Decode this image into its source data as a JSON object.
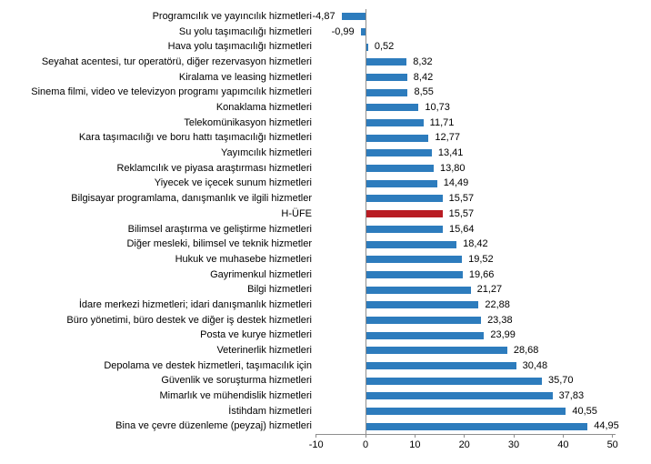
{
  "chart_data": {
    "type": "bar",
    "orientation": "horizontal",
    "title": "",
    "xlabel": "",
    "ylabel": "",
    "grid": false,
    "legend": false,
    "categories": [
      "Programcılık ve yayıncılık hizmetleri",
      "Su yolu taşımacılığı hizmetleri",
      "Hava yolu taşımacılığı hizmetleri",
      "Seyahat acentesi, tur operatörü, diğer rezervasyon hizmetleri",
      "Kiralama ve leasing hizmetleri",
      "Sinema filmi, video ve televizyon programı yapımcılık hizmetleri",
      "Konaklama hizmetleri",
      "Telekomünikasyon hizmetleri",
      "Kara taşımacılığı ve boru hattı taşımacılığı hizmetleri",
      "Yayımcılık hizmetleri",
      "Reklamcılık ve piyasa araştırması hizmetleri",
      "Yiyecek ve içecek sunum hizmetleri",
      "Bilgisayar programlama, danışmanlık ve ilgili hizmetler",
      "H-ÜFE",
      "Bilimsel araştırma ve geliştirme hizmetleri",
      "Diğer mesleki, bilimsel ve teknik hizmetler",
      "Hukuk ve muhasebe hizmetleri",
      "Gayrimenkul hizmetleri",
      "Bilgi hizmetleri",
      "İdare merkezi hizmetleri; idari danışmanlık hizmetleri",
      "Büro yönetimi, büro destek ve diğer iş destek hizmetleri",
      "Posta ve kurye hizmetleri",
      "Veterinerlik hizmetleri",
      "Depolama ve destek hizmetleri, taşımacılık için",
      "Güvenlik ve soruşturma hizmetleri",
      "Mimarlık ve mühendislik hizmetleri",
      "İstihdam hizmetleri",
      "Bina ve çevre düzenleme (peyzaj) hizmetleri"
    ],
    "values": [
      -4.87,
      -0.99,
      0.52,
      8.32,
      8.42,
      8.55,
      10.73,
      11.71,
      12.77,
      13.41,
      13.8,
      14.49,
      15.57,
      15.57,
      15.64,
      18.42,
      19.52,
      19.66,
      21.27,
      22.88,
      23.38,
      23.99,
      28.68,
      30.48,
      35.7,
      37.83,
      40.55,
      44.95
    ],
    "value_labels": [
      "-4,87",
      "-0,99",
      "0,52",
      "8,32",
      "8,42",
      "8,55",
      "10,73",
      "11,71",
      "12,77",
      "13,41",
      "13,80",
      "14,49",
      "15,57",
      "15,57",
      "15,64",
      "18,42",
      "19,52",
      "19,66",
      "21,27",
      "22,88",
      "23,38",
      "23,99",
      "28,68",
      "30,48",
      "35,70",
      "37,83",
      "40,55",
      "44,95"
    ],
    "highlight_category": "H-ÜFE",
    "highlight_index": 13,
    "colors": {
      "bar": "#2d7cbd",
      "highlight": "#b91c23",
      "axis": "#8e8e8e",
      "text": "#000000"
    },
    "x_axis": {
      "min": -10,
      "max": 50,
      "ticks": [
        -10,
        0,
        10,
        20,
        30,
        40,
        50
      ],
      "tick_labels": [
        "-10",
        "0",
        "10",
        "20",
        "30",
        "40",
        "50"
      ],
      "position": "bottom"
    }
  }
}
